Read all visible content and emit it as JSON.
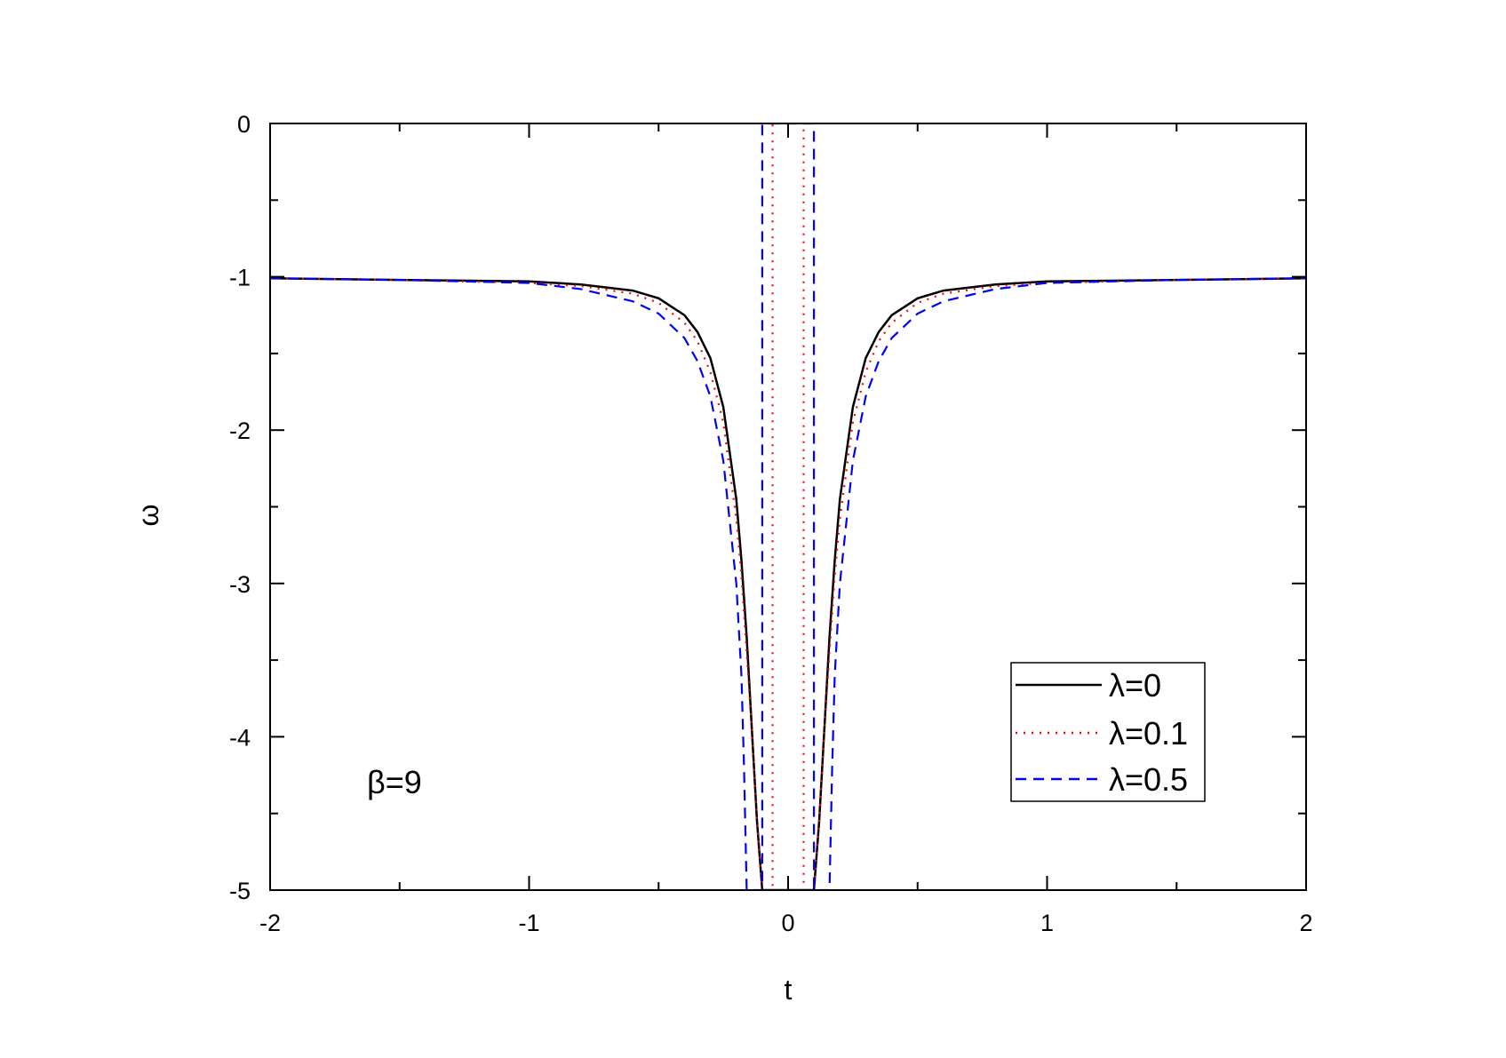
{
  "chart_data": {
    "type": "line",
    "title": "",
    "xlabel": "t",
    "ylabel": "ω",
    "xlim": [
      -2,
      2
    ],
    "ylim": [
      -5,
      0
    ],
    "x_ticks": [
      -2,
      -1,
      0,
      1,
      2
    ],
    "x_tick_labels": [
      "-2",
      "-1",
      "0",
      "1",
      "2"
    ],
    "y_ticks": [
      0,
      -1,
      -2,
      -3,
      -4,
      -5
    ],
    "y_tick_labels": [
      "0",
      "-1",
      "-2",
      "-3",
      "-4",
      "-5"
    ],
    "grid": false,
    "legend_position": "bottom-right",
    "annotation": "β=9",
    "series": [
      {
        "name": "λ=0",
        "color": "#000000",
        "style": "solid",
        "x": [
          -2.0,
          -1.5,
          -1.0,
          -0.8,
          -0.6,
          -0.5,
          -0.4,
          -0.35,
          -0.3,
          -0.25,
          -0.2,
          -0.18,
          -0.16,
          -0.14,
          -0.12,
          -0.1,
          0.1,
          0.12,
          0.14,
          0.16,
          0.18,
          0.2,
          0.25,
          0.3,
          0.35,
          0.4,
          0.5,
          0.6,
          0.8,
          1.0,
          1.5,
          2.0
        ],
        "y": [
          -1.01,
          -1.02,
          -1.03,
          -1.05,
          -1.09,
          -1.14,
          -1.25,
          -1.36,
          -1.53,
          -1.85,
          -2.45,
          -2.85,
          -3.35,
          -3.95,
          -4.55,
          -5.0,
          -5.0,
          -4.55,
          -3.95,
          -3.35,
          -2.85,
          -2.45,
          -1.85,
          -1.53,
          -1.36,
          -1.25,
          -1.14,
          -1.09,
          -1.05,
          -1.03,
          -1.02,
          -1.01
        ]
      },
      {
        "name": "λ=0.1",
        "color": "#ff0000",
        "style": "dotted",
        "x": [
          -2.0,
          -1.5,
          -1.0,
          -0.8,
          -0.6,
          -0.5,
          -0.4,
          -0.35,
          -0.3,
          -0.25,
          -0.2,
          -0.18,
          -0.16,
          -0.14,
          -0.12,
          -0.1,
          -0.08,
          -0.06,
          -0.06,
          0.06,
          0.06,
          0.08,
          0.1,
          0.12,
          0.14,
          0.16,
          0.18,
          0.2,
          0.25,
          0.3,
          0.35,
          0.4,
          0.5,
          0.6,
          0.8,
          1.0,
          1.5,
          2.0
        ],
        "y": [
          -1.01,
          -1.02,
          -1.04,
          -1.06,
          -1.11,
          -1.17,
          -1.3,
          -1.42,
          -1.62,
          -1.95,
          -2.58,
          -2.95,
          -3.45,
          -3.95,
          -4.55,
          -5.0,
          -5.0,
          -5.0,
          0.0,
          0.0,
          -5.0,
          -5.0,
          -5.0,
          -4.55,
          -3.95,
          -3.45,
          -2.95,
          -2.58,
          -1.95,
          -1.62,
          -1.42,
          -1.3,
          -1.17,
          -1.11,
          -1.06,
          -1.04,
          -1.02,
          -1.01
        ]
      },
      {
        "name": "λ=0.5",
        "color": "#0000ff",
        "style": "dashed",
        "x": [
          -2.0,
          -1.5,
          -1.0,
          -0.8,
          -0.6,
          -0.5,
          -0.4,
          -0.35,
          -0.3,
          -0.25,
          -0.2,
          -0.18,
          -0.17,
          -0.16,
          -0.1,
          -0.1,
          0.1,
          0.1,
          0.16,
          0.17,
          0.18,
          0.2,
          0.25,
          0.3,
          0.35,
          0.4,
          0.5,
          0.6,
          0.8,
          1.0,
          1.5,
          2.0
        ],
        "y": [
          -1.01,
          -1.02,
          -1.04,
          -1.08,
          -1.16,
          -1.24,
          -1.4,
          -1.55,
          -1.78,
          -2.2,
          -3.0,
          -3.6,
          -4.2,
          -5.0,
          -5.0,
          0.0,
          0.0,
          -5.0,
          -5.0,
          -4.2,
          -3.6,
          -3.0,
          -2.2,
          -1.78,
          -1.55,
          -1.4,
          -1.24,
          -1.16,
          -1.08,
          -1.04,
          -1.02,
          -1.01
        ]
      }
    ]
  }
}
